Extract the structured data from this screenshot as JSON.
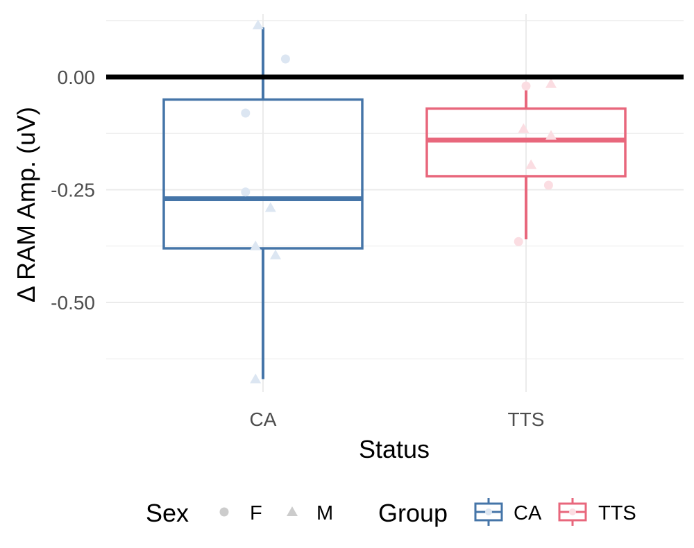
{
  "chart_data": {
    "type": "box",
    "xlabel": "Status",
    "ylabel": "Δ RAM Amp. (uV)",
    "categories": [
      "CA",
      "TTS"
    ],
    "ylim": [
      -0.62,
      0.12
    ],
    "yticks": [
      0.0,
      -0.25,
      -0.5
    ],
    "ytick_labels": [
      "0.00",
      "-0.25",
      "-0.50"
    ],
    "reference_line": 0.0,
    "grid": true,
    "boxes": [
      {
        "category": "CA",
        "group": "CA",
        "whisker_low": -0.67,
        "q1": -0.38,
        "median": -0.27,
        "q3": -0.05,
        "whisker_high": 0.11
      },
      {
        "category": "TTS",
        "group": "TTS",
        "whisker_low": -0.36,
        "q1": -0.22,
        "median": -0.14,
        "q3": -0.07,
        "whisker_high": -0.02
      }
    ],
    "points": [
      {
        "category": "CA",
        "jitter": -0.02,
        "y": 0.115,
        "sex": "M"
      },
      {
        "category": "CA",
        "jitter": 0.09,
        "y": 0.04,
        "sex": "F"
      },
      {
        "category": "CA",
        "jitter": -0.07,
        "y": -0.08,
        "sex": "F"
      },
      {
        "category": "CA",
        "jitter": -0.07,
        "y": -0.255,
        "sex": "F"
      },
      {
        "category": "CA",
        "jitter": 0.03,
        "y": -0.29,
        "sex": "M"
      },
      {
        "category": "CA",
        "jitter": -0.03,
        "y": -0.375,
        "sex": "M"
      },
      {
        "category": "CA",
        "jitter": 0.05,
        "y": -0.395,
        "sex": "M"
      },
      {
        "category": "CA",
        "jitter": -0.03,
        "y": -0.67,
        "sex": "M"
      },
      {
        "category": "TTS",
        "jitter": 0.0,
        "y": -0.02,
        "sex": "F"
      },
      {
        "category": "TTS",
        "jitter": 0.1,
        "y": -0.015,
        "sex": "M"
      },
      {
        "category": "TTS",
        "jitter": -0.01,
        "y": -0.115,
        "sex": "M"
      },
      {
        "category": "TTS",
        "jitter": 0.1,
        "y": -0.13,
        "sex": "M"
      },
      {
        "category": "TTS",
        "jitter": 0.02,
        "y": -0.195,
        "sex": "M"
      },
      {
        "category": "TTS",
        "jitter": 0.09,
        "y": -0.24,
        "sex": "F"
      },
      {
        "category": "TTS",
        "jitter": -0.03,
        "y": -0.365,
        "sex": "F"
      }
    ],
    "legend": {
      "position": "bottom",
      "sex_title": "Sex",
      "sex_items": [
        {
          "label": "F",
          "shape": "circle"
        },
        {
          "label": "M",
          "shape": "triangle"
        }
      ],
      "group_title": "Group",
      "group_items": [
        {
          "label": "CA"
        },
        {
          "label": "TTS"
        }
      ]
    },
    "colors": {
      "CA": "#4575a8",
      "TTS": "#e8677c",
      "CA_point": "#dce6f2",
      "TTS_point": "#fbdde2",
      "legend_point": "#cccccc",
      "reference_line": "#000000",
      "grid": "#ebebeb"
    }
  }
}
